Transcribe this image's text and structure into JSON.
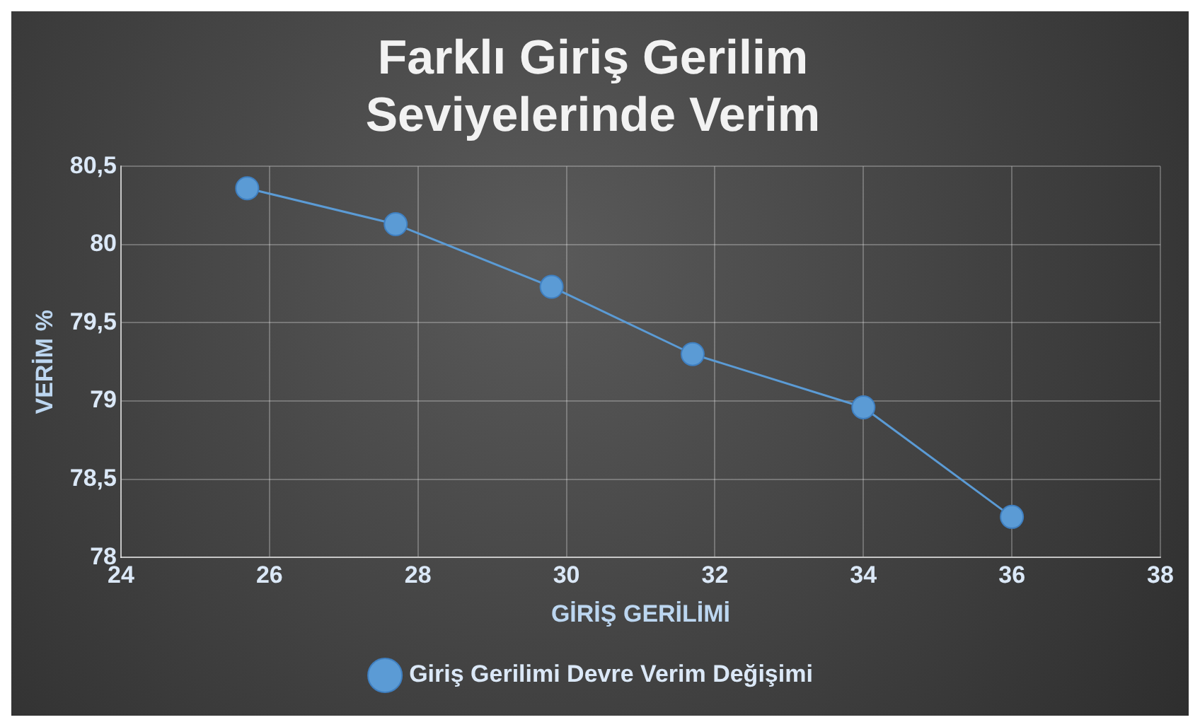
{
  "chart_data": {
    "type": "line",
    "title": [
      "Farklı Giriş Gerilim",
      "Seviyelerinde Verim"
    ],
    "xlabel": "GİRİŞ GERİLİMİ",
    "ylabel": "VERİM %",
    "x": [
      25.7,
      27.7,
      29.8,
      31.7,
      34,
      36
    ],
    "series": [
      {
        "name": "Giriş Gerilimi Devre Verim Değişimi",
        "color": "#5b9bd5",
        "values": [
          80.36,
          80.13,
          79.73,
          79.3,
          78.96,
          78.26
        ]
      }
    ],
    "xlim": [
      24,
      38
    ],
    "xticks": [
      24,
      26,
      28,
      30,
      32,
      34,
      36,
      38
    ],
    "ylim": [
      78,
      80.5
    ],
    "yticks": [
      78,
      {
        "value": 78.5,
        "label": "78,5"
      },
      79,
      {
        "value": 79.5,
        "label": "79,5"
      },
      80,
      {
        "value": 80.5,
        "label": "80,5"
      }
    ],
    "grid": true,
    "legend": "bottom",
    "marker": "circle",
    "line_style": "solid"
  }
}
